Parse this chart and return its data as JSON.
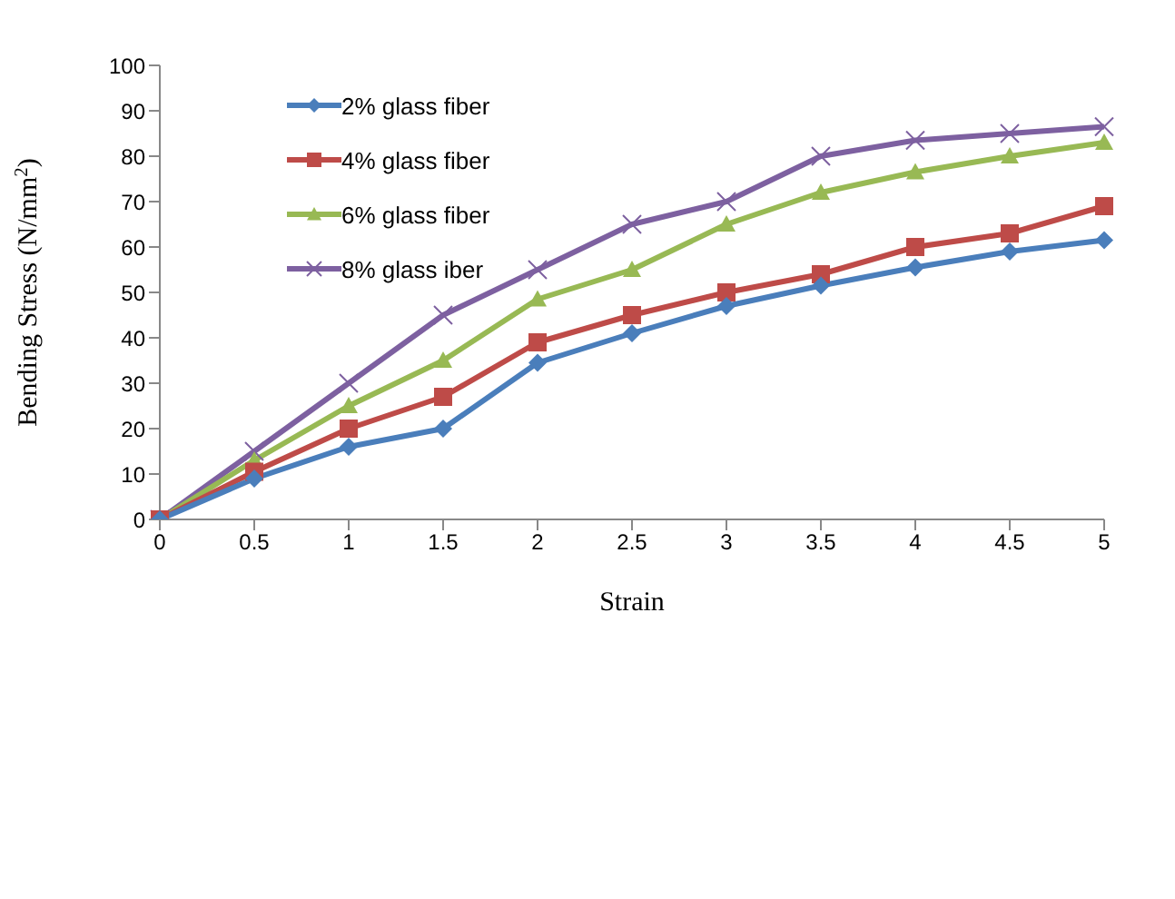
{
  "chart_data": {
    "type": "line",
    "xlabel": "Strain",
    "ylabel": "Bending Stress (N/mm$^{2}$)",
    "categories": [
      "0",
      "0.5",
      "1",
      "1.5",
      "2",
      "2.5",
      "3",
      "3.5",
      "4",
      "4.5",
      "5"
    ],
    "series": [
      {
        "name": "2% glass fiber",
        "color": "#4a7ebb",
        "marker": "diamond",
        "values": [
          0,
          9,
          16,
          20,
          34.5,
          41,
          47,
          51.5,
          55.5,
          59,
          61.5
        ]
      },
      {
        "name": "4% glass fiber",
        "color": "#be4b48",
        "marker": "square",
        "values": [
          0,
          10.5,
          20,
          27,
          39,
          45,
          50,
          54,
          60,
          63,
          69
        ]
      },
      {
        "name": "6% glass fiber",
        "color": "#98b954",
        "marker": "triangle",
        "values": [
          0,
          13,
          25,
          35,
          48.5,
          55,
          65,
          72,
          76.5,
          80,
          83
        ]
      },
      {
        "name": "8% glass iber",
        "color": "#7d60a0",
        "marker": "cross",
        "values": [
          0,
          15,
          30,
          45,
          55,
          65,
          70,
          80,
          83.5,
          85,
          86.5
        ]
      }
    ],
    "ylim": [
      0,
      100
    ],
    "yticks": [
      0,
      10,
      20,
      30,
      40,
      50,
      60,
      70,
      80,
      90,
      100
    ],
    "grid": false,
    "legend": "top left"
  }
}
